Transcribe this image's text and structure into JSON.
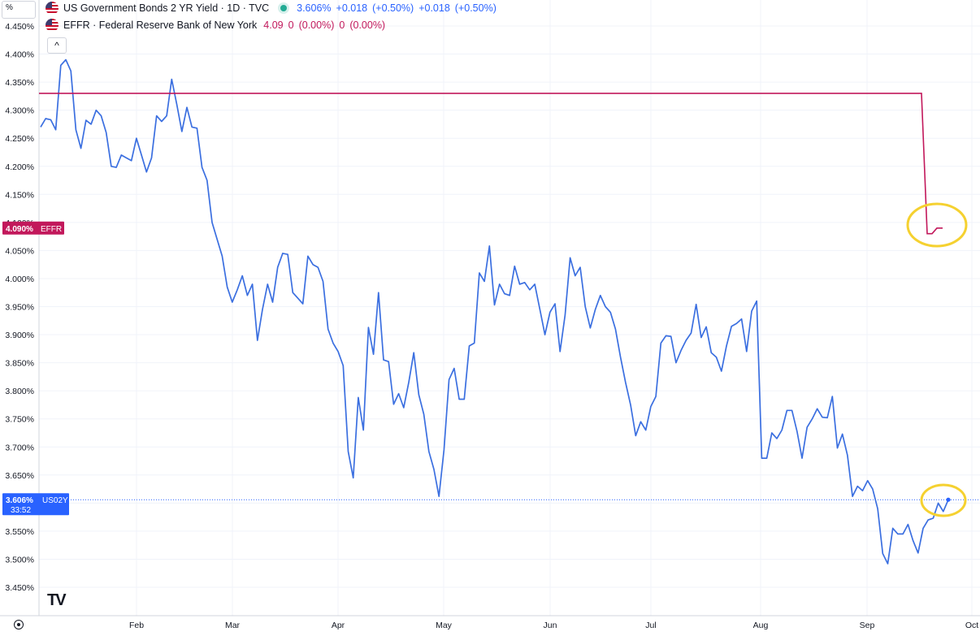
{
  "scale_label": "%",
  "collapse_glyph": "^",
  "logo_text": "TV",
  "icons": {
    "flag": "us-flag-icon",
    "settings": "gear-icon",
    "logo": "tradingview-logo-icon"
  },
  "colors": {
    "series_blue": "#2962ff",
    "series_line": "#3b6fe0",
    "effr": "#c2185b",
    "highlight": "#f5d130",
    "live_dot": "#22ab94"
  },
  "legend": {
    "primary": {
      "title": "US Government Bonds 2 YR Yield · 1D · TVC",
      "values": [
        "3.606%",
        "+0.018",
        "(+0.50%)",
        "+0.018",
        "(+0.50%)"
      ]
    },
    "secondary": {
      "title": "EFFR · Federal Reserve Bank of New York",
      "values": [
        "4.09",
        "0",
        "(0.00%)",
        "0",
        "(0.00%)"
      ]
    }
  },
  "badges": {
    "effr": {
      "price": "4.090%",
      "label": "EFFR"
    },
    "us02y": {
      "price": "3.606%",
      "label": "US02Y",
      "countdown": "33:52"
    }
  },
  "chart_data": {
    "type": "line",
    "y_axis": {
      "min": 3.45,
      "max": 4.45,
      "ticks": [
        "4.450%",
        "4.400%",
        "4.350%",
        "4.300%",
        "4.250%",
        "4.200%",
        "4.150%",
        "4.100%",
        "4.050%",
        "4.000%",
        "3.950%",
        "3.900%",
        "3.850%",
        "3.800%",
        "3.750%",
        "3.700%",
        "3.650%",
        "3.600%",
        "3.550%",
        "3.500%",
        "3.450%"
      ]
    },
    "x_axis": {
      "labels": [
        "Feb",
        "Mar",
        "Apr",
        "May",
        "Jun",
        "Jul",
        "Aug",
        "Sep",
        "Oct"
      ]
    },
    "grid": true,
    "series": [
      {
        "name": "US02Y",
        "values": [
          4.27,
          4.285,
          4.283,
          4.265,
          4.38,
          4.39,
          4.37,
          4.265,
          4.232,
          4.282,
          4.275,
          4.3,
          4.29,
          4.26,
          4.2,
          4.198,
          4.22,
          4.215,
          4.21,
          4.25,
          4.22,
          4.19,
          4.215,
          4.29,
          4.28,
          4.29,
          4.355,
          4.31,
          4.262,
          4.305,
          4.27,
          4.268,
          4.198,
          4.175,
          4.1,
          4.07,
          4.04,
          3.985,
          3.958,
          3.98,
          4.005,
          3.97,
          3.99,
          3.89,
          3.945,
          3.99,
          3.958,
          4.02,
          4.045,
          4.043,
          3.975,
          3.965,
          3.955,
          4.04,
          4.025,
          4.02,
          3.995,
          3.91,
          3.885,
          3.87,
          3.845,
          3.692,
          3.645,
          3.788,
          3.73,
          3.913,
          3.865,
          3.975,
          3.855,
          3.852,
          3.776,
          3.795,
          3.77,
          3.815,
          3.868,
          3.793,
          3.758,
          3.692,
          3.66,
          3.612,
          3.695,
          3.82,
          3.84,
          3.785,
          3.785,
          3.88,
          3.885,
          4.01,
          3.995,
          4.058,
          3.953,
          3.99,
          3.973,
          3.97,
          4.022,
          3.99,
          3.993,
          3.98,
          3.99,
          3.945,
          3.9,
          3.94,
          3.955,
          3.87,
          3.935,
          4.037,
          4.005,
          4.02,
          3.95,
          3.912,
          3.945,
          3.97,
          3.95,
          3.94,
          3.91,
          3.86,
          3.815,
          3.775,
          3.72,
          3.745,
          3.73,
          3.772,
          3.79,
          3.885,
          3.898,
          3.897,
          3.85,
          3.872,
          3.89,
          3.903,
          3.954,
          3.895,
          3.914,
          3.868,
          3.86,
          3.835,
          3.88,
          3.915,
          3.92,
          3.928,
          3.87,
          3.942,
          3.96,
          3.68,
          3.68,
          3.725,
          3.715,
          3.73,
          3.765,
          3.765,
          3.728,
          3.68,
          3.735,
          3.75,
          3.768,
          3.753,
          3.752,
          3.79,
          3.698,
          3.723,
          3.685,
          3.612,
          3.63,
          3.622,
          3.64,
          3.625,
          3.59,
          3.51,
          3.492,
          3.555,
          3.545,
          3.545,
          3.562,
          3.533,
          3.511,
          3.555,
          3.57,
          3.573,
          3.6,
          3.585,
          3.606
        ]
      },
      {
        "name": "EFFR",
        "values": [
          4.33,
          4.33,
          4.33,
          4.08,
          4.08,
          4.09,
          4.09
        ]
      }
    ]
  }
}
